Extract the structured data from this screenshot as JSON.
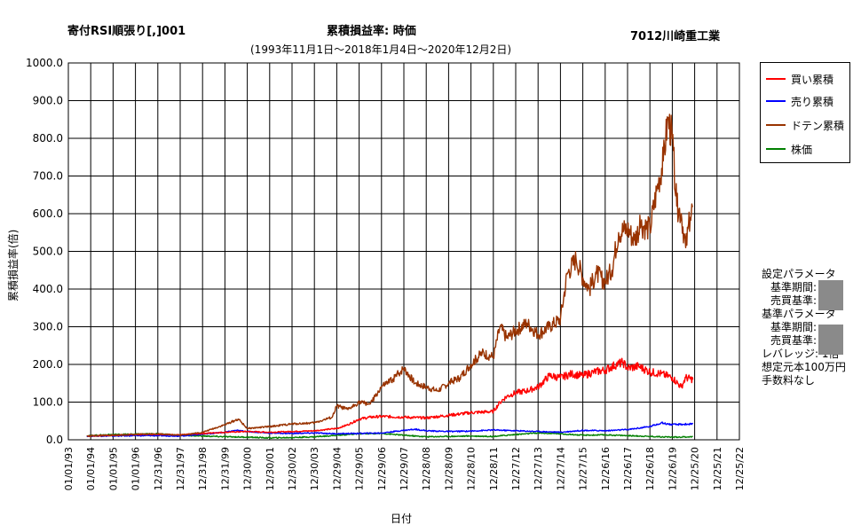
{
  "header": {
    "title_left": "寄付RSI順張り[,]001",
    "title_center": "累積損益率:  時価",
    "title_right": "7012川崎重工業",
    "subtitle": "(1993年11月1日～2018年1月4日～2020年12月2日)"
  },
  "colors": {
    "buy": "#ff0000",
    "sell": "#0000ff",
    "doten": "#993300",
    "price": "#008000",
    "grid": "#000000"
  },
  "chart_data": {
    "type": "line",
    "xlabel": "日付",
    "ylabel": "累積損益率(倍)",
    "ylim": [
      0,
      1000
    ],
    "y_ticks": [
      "0.0",
      "100.0",
      "200.0",
      "300.0",
      "400.0",
      "500.0",
      "600.0",
      "700.0",
      "800.0",
      "900.0",
      "1000.0"
    ],
    "x_ticks": [
      "01/01/93",
      "01/01/94",
      "01/01/95",
      "01/01/96",
      "12/31/96",
      "12/31/97",
      "12/31/98",
      "12/31/99",
      "12/30/00",
      "12/30/01",
      "12/30/02",
      "12/30/03",
      "12/29/04",
      "12/29/05",
      "12/29/06",
      "12/29/07",
      "12/28/08",
      "12/28/09",
      "12/28/10",
      "12/28/11",
      "12/27/12",
      "12/27/13",
      "12/27/14",
      "12/27/15",
      "12/26/16",
      "12/26/17",
      "12/26/18",
      "12/26/19",
      "12/25/20",
      "12/25/21",
      "12/25/22"
    ],
    "grid": true,
    "legend_position": "top-right-outside",
    "series": [
      {
        "name": "買い累積",
        "color": "#ff0000",
        "points": [
          [
            1993.83,
            10
          ],
          [
            1995,
            12
          ],
          [
            1996,
            14
          ],
          [
            1997,
            15
          ],
          [
            1998,
            13
          ],
          [
            1999,
            17
          ],
          [
            2000,
            20
          ],
          [
            2001,
            22
          ],
          [
            2002,
            20
          ],
          [
            2003,
            22
          ],
          [
            2004,
            24
          ],
          [
            2005,
            30
          ],
          [
            2005.5,
            40
          ],
          [
            2006,
            55
          ],
          [
            2006.5,
            60
          ],
          [
            2007,
            62
          ],
          [
            2008,
            60
          ],
          [
            2009,
            58
          ],
          [
            2010,
            65
          ],
          [
            2011,
            72
          ],
          [
            2012,
            75
          ],
          [
            2012.3,
            100
          ],
          [
            2012.6,
            115
          ],
          [
            2013,
            125
          ],
          [
            2013.5,
            130
          ],
          [
            2014,
            140
          ],
          [
            2014.5,
            170
          ],
          [
            2015,
            165
          ],
          [
            2015.5,
            175
          ],
          [
            2016,
            170
          ],
          [
            2016.5,
            180
          ],
          [
            2017,
            185
          ],
          [
            2017.5,
            200
          ],
          [
            2017.8,
            205
          ],
          [
            2018,
            190
          ],
          [
            2018.5,
            195
          ],
          [
            2019,
            180
          ],
          [
            2019.5,
            175
          ],
          [
            2020,
            165
          ],
          [
            2020.4,
            140
          ],
          [
            2020.6,
            165
          ],
          [
            2020.92,
            160
          ]
        ]
      },
      {
        "name": "売り累積",
        "color": "#0000ff",
        "points": [
          [
            1993.83,
            10
          ],
          [
            1995,
            10
          ],
          [
            1996,
            11
          ],
          [
            1997,
            11
          ],
          [
            1998,
            10
          ],
          [
            1999,
            15
          ],
          [
            2000,
            20
          ],
          [
            2000.5,
            25
          ],
          [
            2001,
            22
          ],
          [
            2002,
            18
          ],
          [
            2003,
            17
          ],
          [
            2004,
            18
          ],
          [
            2005,
            16
          ],
          [
            2006,
            17
          ],
          [
            2007,
            18
          ],
          [
            2008,
            25
          ],
          [
            2008.5,
            28
          ],
          [
            2009,
            24
          ],
          [
            2010,
            22
          ],
          [
            2011,
            23
          ],
          [
            2012,
            26
          ],
          [
            2013,
            24
          ],
          [
            2014,
            22
          ],
          [
            2015,
            20
          ],
          [
            2016,
            25
          ],
          [
            2017,
            24
          ],
          [
            2018,
            27
          ],
          [
            2019,
            35
          ],
          [
            2019.5,
            45
          ],
          [
            2020,
            40
          ],
          [
            2020.92,
            42
          ]
        ]
      },
      {
        "name": "ドテン累積",
        "color": "#993300",
        "points": [
          [
            1993.83,
            10
          ],
          [
            1995,
            12
          ],
          [
            1996,
            14
          ],
          [
            1997,
            16
          ],
          [
            1998,
            12
          ],
          [
            1999,
            20
          ],
          [
            2000,
            40
          ],
          [
            2000.6,
            55
          ],
          [
            2001,
            30
          ],
          [
            2002,
            35
          ],
          [
            2003,
            42
          ],
          [
            2004,
            45
          ],
          [
            2004.8,
            60
          ],
          [
            2005,
            90
          ],
          [
            2005.5,
            80
          ],
          [
            2006,
            100
          ],
          [
            2006.5,
            95
          ],
          [
            2007,
            140
          ],
          [
            2007.5,
            160
          ],
          [
            2008,
            190
          ],
          [
            2008.5,
            150
          ],
          [
            2009,
            140
          ],
          [
            2009.5,
            130
          ],
          [
            2010,
            150
          ],
          [
            2010.5,
            165
          ],
          [
            2011,
            200
          ],
          [
            2011.5,
            230
          ],
          [
            2012,
            220
          ],
          [
            2012.3,
            300
          ],
          [
            2012.6,
            270
          ],
          [
            2013,
            290
          ],
          [
            2013.5,
            310
          ],
          [
            2014,
            280
          ],
          [
            2014.5,
            300
          ],
          [
            2015,
            320
          ],
          [
            2015.3,
            440
          ],
          [
            2015.7,
            480
          ],
          [
            2016,
            430
          ],
          [
            2016.3,
            400
          ],
          [
            2016.6,
            440
          ],
          [
            2017,
            420
          ],
          [
            2017.3,
            450
          ],
          [
            2017.6,
            550
          ],
          [
            2018,
            560
          ],
          [
            2018.3,
            530
          ],
          [
            2018.6,
            570
          ],
          [
            2019,
            560
          ],
          [
            2019.3,
            660
          ],
          [
            2019.6,
            740
          ],
          [
            2019.8,
            850
          ],
          [
            2020,
            800
          ],
          [
            2020.2,
            620
          ],
          [
            2020.4,
            600
          ],
          [
            2020.6,
            510
          ],
          [
            2020.8,
            590
          ],
          [
            2020.92,
            620
          ]
        ]
      },
      {
        "name": "株価",
        "color": "#008000",
        "points": [
          [
            1993.83,
            11
          ],
          [
            1995,
            14
          ],
          [
            1996,
            15
          ],
          [
            1997,
            16
          ],
          [
            1998,
            12
          ],
          [
            1999,
            10
          ],
          [
            2000,
            8
          ],
          [
            2001,
            7
          ],
          [
            2002,
            5
          ],
          [
            2003,
            6
          ],
          [
            2004,
            8
          ],
          [
            2005,
            12
          ],
          [
            2006,
            16
          ],
          [
            2007,
            17
          ],
          [
            2008,
            12
          ],
          [
            2009,
            8
          ],
          [
            2010,
            9
          ],
          [
            2011,
            10
          ],
          [
            2012,
            9
          ],
          [
            2013,
            14
          ],
          [
            2014,
            18
          ],
          [
            2015,
            16
          ],
          [
            2016,
            12
          ],
          [
            2017,
            13
          ],
          [
            2018,
            11
          ],
          [
            2019,
            9
          ],
          [
            2020,
            7
          ],
          [
            2020.92,
            8
          ]
        ]
      }
    ]
  },
  "params": {
    "setting_header": "設定パラメータ",
    "setting_period": "基準期間:",
    "setting_trade": "売買基準:",
    "base_header": "基準パラメータ",
    "base_period": "基準期間:",
    "base_trade": "売買基準:",
    "leverage": "レバレッジ: 1倍",
    "capital": "想定元本100万円",
    "fee": "手数料なし"
  }
}
